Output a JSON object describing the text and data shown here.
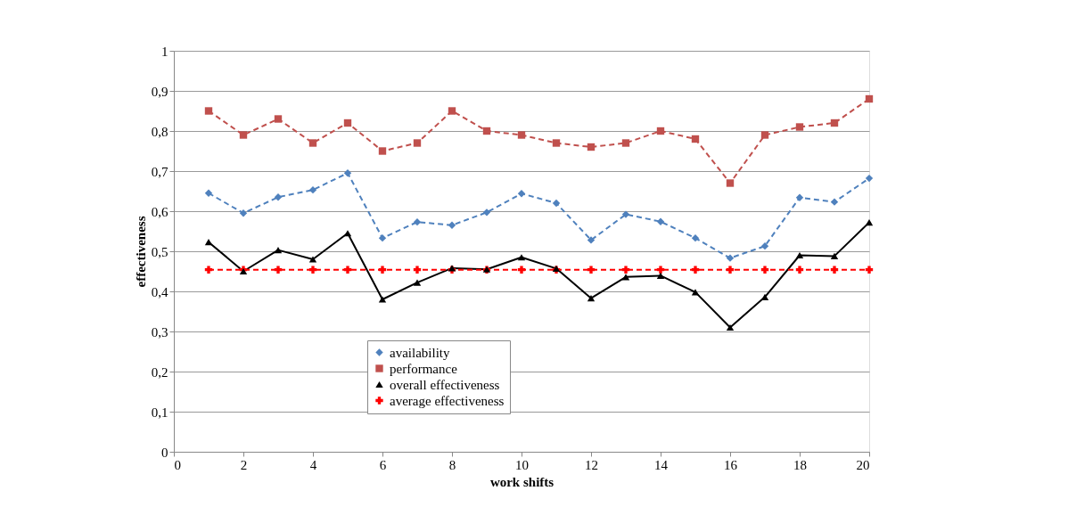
{
  "chart_data": {
    "type": "line",
    "xlabel": "work shifts",
    "ylabel": "effectiveness",
    "x": [
      1,
      2,
      3,
      4,
      5,
      6,
      7,
      8,
      9,
      10,
      11,
      12,
      13,
      14,
      15,
      16,
      17,
      18,
      19,
      20
    ],
    "xlim": [
      0,
      20
    ],
    "xticks": [
      0,
      2,
      4,
      6,
      8,
      10,
      12,
      14,
      16,
      18,
      20
    ],
    "ylim": [
      0,
      1
    ],
    "yticks": [
      0,
      {
        "value": 0.1,
        "label": "0,1"
      },
      {
        "value": 0.2,
        "label": "0,2"
      },
      {
        "value": 0.3,
        "label": "0,3"
      },
      {
        "value": 0.4,
        "label": "0,4"
      },
      {
        "value": 0.5,
        "label": "0,5"
      },
      {
        "value": 0.6,
        "label": "0,6"
      },
      {
        "value": 0.7,
        "label": "0,7"
      },
      {
        "value": 0.8,
        "label": "0,8"
      },
      {
        "value": 0.9,
        "label": "0,9"
      },
      1
    ],
    "grid": "y",
    "legend": "bottom",
    "series": [
      {
        "name": "availability",
        "color": "#4f81bd",
        "marker": "diamond",
        "line_style": "dashed",
        "values": [
          0.645,
          0.595,
          0.635,
          0.653,
          0.695,
          0.533,
          0.573,
          0.565,
          0.597,
          0.644,
          0.62,
          0.528,
          0.592,
          0.574,
          0.533,
          0.483,
          0.513,
          0.634,
          0.623,
          0.682
        ]
      },
      {
        "name": "performance",
        "color": "#c0504d",
        "marker": "square",
        "line_style": "dashed",
        "values": [
          0.85,
          0.79,
          0.83,
          0.77,
          0.82,
          0.75,
          0.77,
          0.85,
          0.8,
          0.79,
          0.77,
          0.76,
          0.77,
          0.8,
          0.78,
          0.67,
          0.79,
          0.81,
          0.82,
          0.88
        ]
      },
      {
        "name": "overall effectiveness",
        "color": "#000000",
        "marker": "triangle",
        "line_style": "solid",
        "values": [
          0.523,
          0.45,
          0.503,
          0.48,
          0.545,
          0.38,
          0.422,
          0.458,
          0.455,
          0.485,
          0.457,
          0.383,
          0.436,
          0.439,
          0.398,
          0.31,
          0.386,
          0.49,
          0.488,
          0.572
        ]
      },
      {
        "name": "average effectiveness",
        "color": "#ff0000",
        "marker": "cross",
        "line_style": "dashed",
        "values": [
          0.454,
          0.454,
          0.454,
          0.454,
          0.454,
          0.454,
          0.454,
          0.454,
          0.454,
          0.454,
          0.454,
          0.454,
          0.454,
          0.454,
          0.454,
          0.454,
          0.454,
          0.454,
          0.454,
          0.454
        ]
      }
    ]
  }
}
